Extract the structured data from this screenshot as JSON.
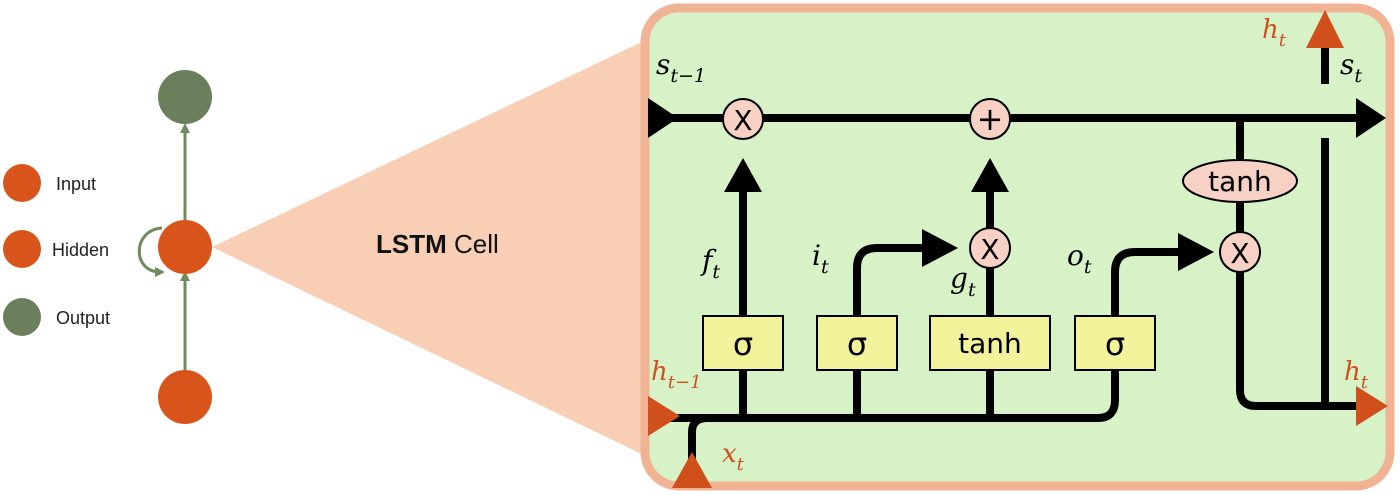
{
  "colors": {
    "node_orange": "#d9541a",
    "node_green": "#6b7f5c",
    "rnn_line": "#6f8a5c",
    "funnel": "#f8cfb4",
    "panel_fill": "#d8f2c8",
    "panel_border": "#f0b393",
    "gate_fill": "#f2f29a",
    "op_fill": "#f7d1c4",
    "label_orange": "#d0501c"
  },
  "legend": {
    "input": "Input",
    "hidden": "Hidden",
    "output": "Output"
  },
  "title": {
    "bold": "LSTM",
    "rest": " Cell"
  },
  "gates": {
    "forget": "σ",
    "input": "σ",
    "candidate": "tanh",
    "output": "σ"
  },
  "ops": {
    "mult_forget": "X",
    "add": "+",
    "mult_input": "X",
    "mult_output": "X",
    "tanh": "tanh"
  },
  "labels": {
    "s_prev": {
      "base": "s",
      "sub": "t−1"
    },
    "s_curr": {
      "base": "s",
      "sub": "t"
    },
    "h_top": {
      "base": "h",
      "sub": "t"
    },
    "h_right": {
      "base": "h",
      "sub": "t"
    },
    "h_prev": {
      "base": "h",
      "sub": "t−1"
    },
    "x_in": {
      "base": "x",
      "sub": "t"
    },
    "f": {
      "base": "f",
      "sub": "t"
    },
    "i": {
      "base": "i",
      "sub": "t"
    },
    "g": {
      "base": "g",
      "sub": "t"
    },
    "o": {
      "base": "o",
      "sub": "t"
    }
  }
}
